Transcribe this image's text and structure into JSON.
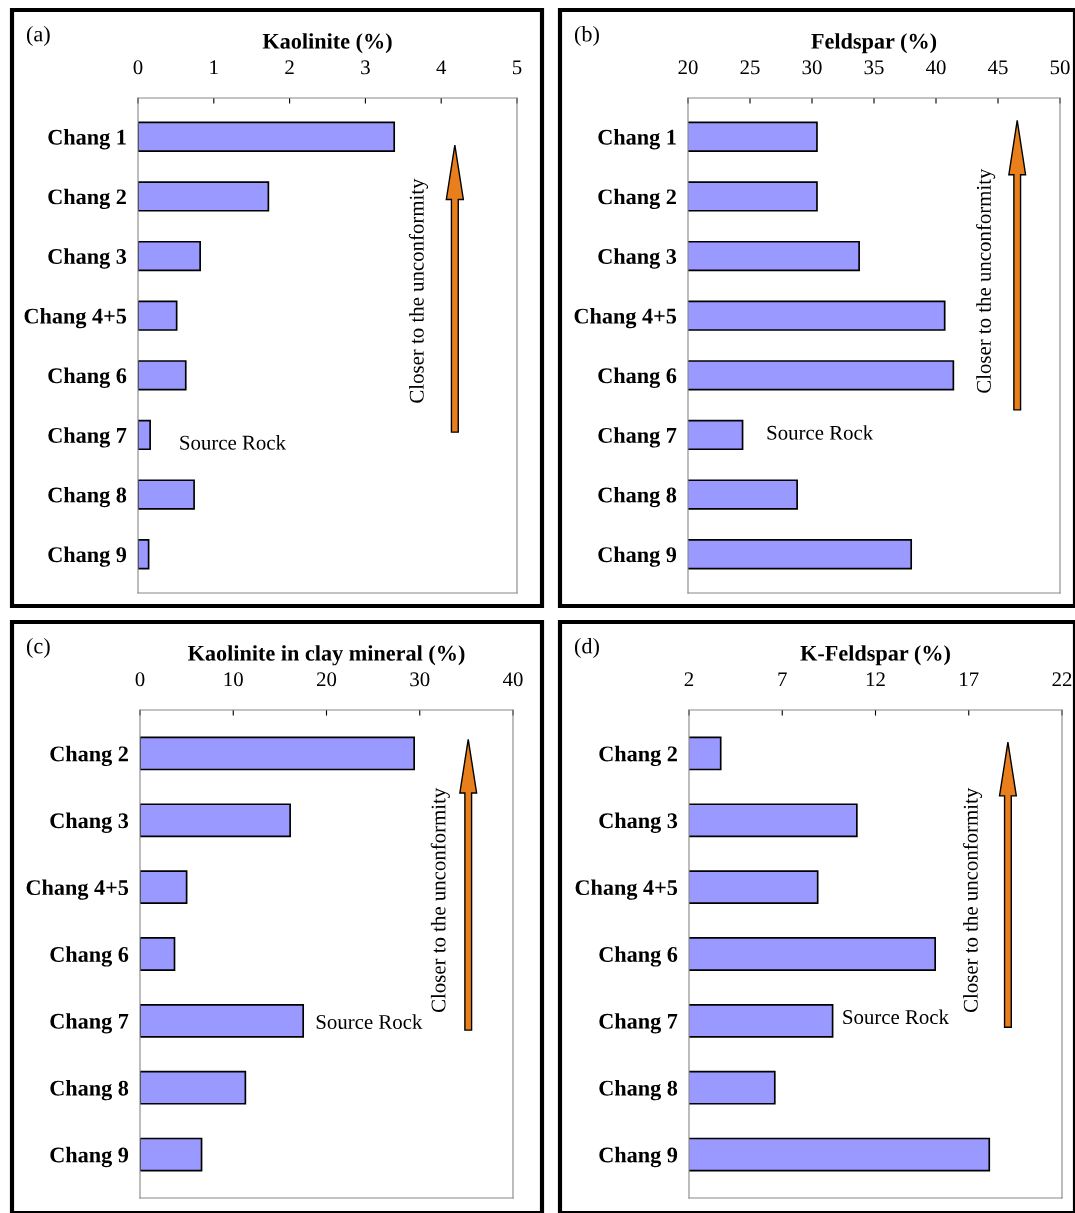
{
  "chart_data": [
    {
      "type": "bar",
      "orientation": "horizontal",
      "title": "(a)",
      "xlabel": "Kaolinite (%)",
      "categories": [
        "Chang 1",
        "Chang 2",
        "Chang 3",
        "Chang 4+5",
        "Chang 6",
        "Chang 7",
        "Chang 8",
        "Chang 9"
      ],
      "values": [
        3.38,
        1.72,
        0.82,
        0.51,
        0.63,
        0.16,
        0.74,
        0.14
      ],
      "color": "#9999ff",
      "xlim": [
        0,
        5
      ],
      "xticks": [
        0,
        1,
        2,
        3,
        4,
        5
      ],
      "grid": false,
      "annotations": [
        "Source Rock",
        "Closer to the unconformity"
      ]
    },
    {
      "type": "bar",
      "orientation": "horizontal",
      "title": "(b)",
      "xlabel": "Feldspar (%)",
      "categories": [
        "Chang 1",
        "Chang 2",
        "Chang 3",
        "Chang 4+5",
        "Chang 6",
        "Chang 7",
        "Chang 8",
        "Chang 9"
      ],
      "values": [
        30.4,
        30.4,
        33.8,
        40.7,
        41.4,
        24.4,
        28.8,
        38.0
      ],
      "color": "#9999ff",
      "xlim": [
        20,
        50
      ],
      "xticks": [
        20,
        25,
        30,
        35,
        40,
        45,
        50
      ],
      "grid": false,
      "annotations": [
        "Source Rock",
        "Closer to the unconformity"
      ]
    },
    {
      "type": "bar",
      "orientation": "horizontal",
      "title": "(c)",
      "xlabel": "Kaolinite in clay mineral (%)",
      "categories": [
        "Chang 2",
        "Chang 3",
        "Chang 4+5",
        "Chang 6",
        "Chang 7",
        "Chang 8",
        "Chang 9"
      ],
      "values": [
        29.4,
        16.1,
        5.0,
        3.7,
        17.5,
        11.3,
        6.6
      ],
      "color": "#9999ff",
      "xlim": [
        0,
        40
      ],
      "xticks": [
        0,
        10,
        20,
        30,
        40
      ],
      "grid": false,
      "annotations": [
        "Source Rock",
        "Closer to the unconformity"
      ]
    },
    {
      "type": "bar",
      "orientation": "horizontal",
      "title": "(d)",
      "xlabel": "K-Feldspar (%)",
      "categories": [
        "Chang 2",
        "Chang 3",
        "Chang 4+5",
        "Chang 6",
        "Chang 7",
        "Chang 8",
        "Chang 9"
      ],
      "values": [
        3.7,
        11.0,
        8.9,
        15.2,
        9.7,
        6.6,
        18.1
      ],
      "color": "#9999ff",
      "xlim": [
        2,
        22
      ],
      "xticks": [
        2,
        7,
        12,
        17,
        22
      ],
      "grid": false,
      "annotations": [
        "Source Rock",
        "Closer to the unconformity"
      ]
    }
  ]
}
